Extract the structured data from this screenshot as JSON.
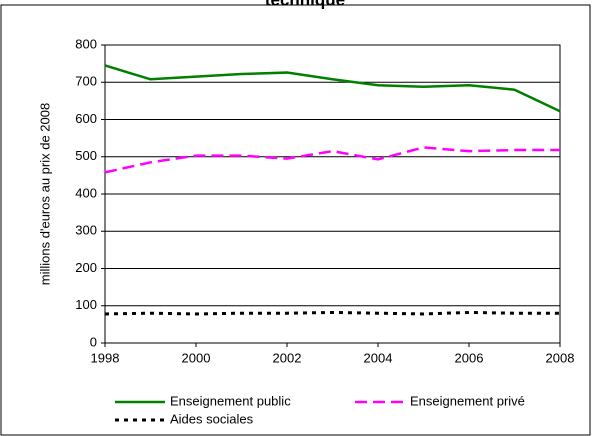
{
  "chart_data": {
    "type": "line",
    "title": "technique",
    "y_label": "millions d'euros au prix de 2008",
    "x": [
      1998,
      1999,
      2000,
      2001,
      2002,
      2003,
      2004,
      2005,
      2006,
      2007,
      2008
    ],
    "xlim": [
      1998,
      2008
    ],
    "xticks": [
      1998,
      2000,
      2002,
      2004,
      2006,
      2008
    ],
    "ylim": [
      0,
      800
    ],
    "yticks": [
      0,
      100,
      200,
      300,
      400,
      500,
      600,
      700,
      800
    ],
    "grid": true,
    "series": [
      {
        "name": "Enseignement public",
        "color": "#008000",
        "dash": "solid",
        "values": [
          745,
          708,
          715,
          722,
          726,
          708,
          692,
          688,
          692,
          680,
          622
        ]
      },
      {
        "name": "Enseignement privé",
        "color": "#ff00ff",
        "dash": "dashed",
        "values": [
          458,
          485,
          503,
          503,
          495,
          515,
          493,
          525,
          515,
          518,
          518
        ]
      },
      {
        "name": "Aides sociales",
        "color": "#000000",
        "dash": "dotted",
        "values": [
          78,
          80,
          78,
          80,
          80,
          82,
          80,
          78,
          82,
          80,
          80
        ]
      }
    ]
  }
}
